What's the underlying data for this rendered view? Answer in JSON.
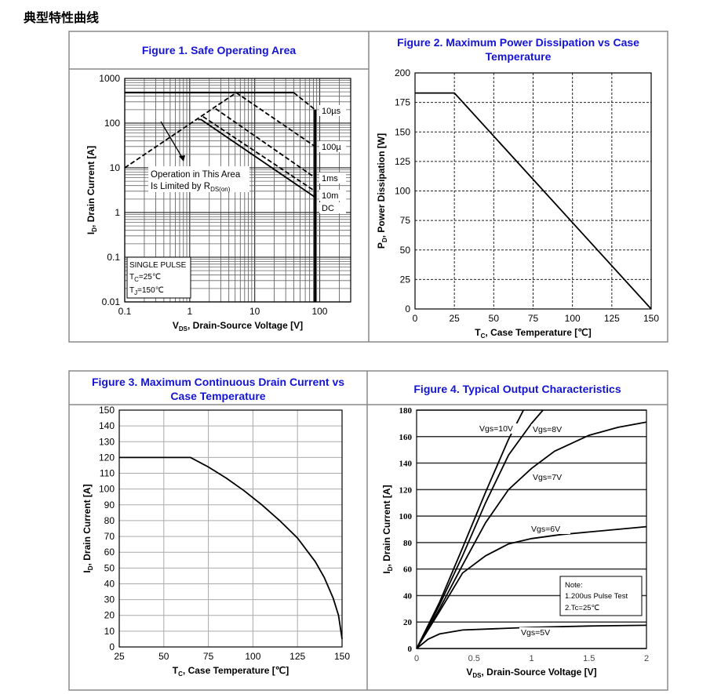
{
  "page_title": "典型特性曲线",
  "figures": [
    {
      "title": "Figure 1. Safe Operating Area"
    },
    {
      "title_lines": [
        "Figure 2. Maximum Power Dissipation vs Case",
        "Temperature"
      ]
    },
    {
      "title_lines": [
        "Figure 3. Maximum Continuous Drain Current vs",
        "Case Temperature"
      ]
    },
    {
      "title": "Figure 4. Typical Output Characteristics"
    }
  ],
  "chart_data": [
    {
      "type": "line",
      "title": "Figure 1. Safe Operating Area",
      "xscale": "log",
      "yscale": "log",
      "xlim": [
        0.1,
        300
      ],
      "ylim": [
        0.01,
        1000
      ],
      "xticks": [
        0.1,
        1,
        10,
        100
      ],
      "xtick_labels": [
        "0.1",
        "1",
        "10",
        "100"
      ],
      "yticks": [
        0.01,
        0.1,
        1,
        10,
        100,
        1000
      ],
      "ytick_labels": [
        "0.01",
        "0.1",
        "1",
        "10",
        "100",
        "1000"
      ],
      "xlabel": {
        "main": "V",
        "sub": "DS",
        "rest": ", Drain-Source Voltage [V]"
      },
      "ylabel": {
        "main": "I",
        "sub": "D",
        "rest": ", Drain Current [A]"
      },
      "grid": true,
      "series": [
        {
          "name": "10µs",
          "style": "solid",
          "points": [
            [
              0.1,
              480
            ],
            [
              40,
              480
            ]
          ]
        },
        {
          "name": "10µs",
          "style": "dashed",
          "points": [
            [
              40,
              480
            ],
            [
              85,
              200
            ]
          ]
        },
        {
          "name": "RDS(on) limit",
          "style": "dashed",
          "points": [
            [
              0.1,
              10
            ],
            [
              5.2,
              480
            ]
          ]
        },
        {
          "name": "100µ",
          "style": "dashed",
          "points": [
            [
              5.2,
              480
            ],
            [
              85,
              30
            ]
          ]
        },
        {
          "name": "1ms",
          "style": "dashed",
          "points": [
            [
              2.5,
              210
            ],
            [
              85,
              6
            ]
          ]
        },
        {
          "name": "10m",
          "style": "dashed",
          "points": [
            [
              1.6,
              140
            ],
            [
              85,
              3
            ]
          ]
        },
        {
          "name": "DC",
          "style": "solid",
          "points": [
            [
              1.35,
              120
            ],
            [
              1.5,
              120
            ],
            [
              85,
              2.2
            ]
          ]
        },
        {
          "name": "VDS limit",
          "style": "thick",
          "points": [
            [
              85,
              200
            ],
            [
              85,
              0.01
            ]
          ]
        }
      ],
      "curve_labels": [
        "10µs",
        "100µ",
        "1ms",
        "10m",
        "DC"
      ],
      "annotation": {
        "line1": "Operation in This Area",
        "line2_main": "Is Limited by R",
        "line2_sub": "DS(on)"
      },
      "conditions": {
        "line1": "SINGLE PULSE",
        "line2_main": "T",
        "line2_sub": "C",
        "line2_rest": "=25℃",
        "line3_main": "T",
        "line3_sub": "J",
        "line3_rest": "=150℃"
      }
    },
    {
      "type": "line",
      "title": "Figure 2. Maximum Power Dissipation vs Case Temperature",
      "xlim": [
        0,
        150
      ],
      "ylim": [
        0,
        200
      ],
      "xticks": [
        0,
        25,
        50,
        75,
        100,
        125,
        150
      ],
      "xtick_labels": [
        "0",
        "25",
        "50",
        "75",
        "100",
        "125",
        "150"
      ],
      "yticks": [
        0,
        25,
        50,
        75,
        100,
        125,
        150,
        175,
        200
      ],
      "ytick_labels": [
        "0",
        "25",
        "50",
        "75",
        "100",
        "125",
        "150",
        "175",
        "200"
      ],
      "xlabel": {
        "main": "T",
        "sub": "C",
        "rest": ", Case Temperature [℃]"
      },
      "ylabel": {
        "main": "P",
        "sub": "D",
        "rest": ", Power Dissipation [W]"
      },
      "grid": true,
      "series": [
        {
          "style": "solid",
          "points": [
            [
              0,
              183
            ],
            [
              25,
              183
            ],
            [
              150,
              0
            ]
          ]
        }
      ]
    },
    {
      "type": "line",
      "title": "Figure 3. Maximum Continuous Drain Current vs Case Temperature",
      "xlim": [
        25,
        150
      ],
      "ylim": [
        0,
        150
      ],
      "xticks": [
        25,
        50,
        75,
        100,
        125,
        150
      ],
      "xtick_labels": [
        "25",
        "50",
        "75",
        "100",
        "125",
        "150"
      ],
      "yticks": [
        0,
        10,
        20,
        30,
        40,
        50,
        60,
        70,
        80,
        90,
        100,
        110,
        120,
        130,
        140,
        150
      ],
      "ytick_labels": [
        "0",
        "10",
        "20",
        "30",
        "40",
        "50",
        "60",
        "70",
        "80",
        "90",
        "100",
        "110",
        "120",
        "130",
        "140",
        "150"
      ],
      "xlabel": {
        "main": "T",
        "sub": "C",
        "rest": ", Case Temperature [℃]"
      },
      "ylabel": {
        "main": "I",
        "sub": "D",
        "rest": ", Drain Current [A]"
      },
      "grid": true,
      "series": [
        {
          "style": "solid",
          "points": [
            [
              25,
              120
            ],
            [
              65,
              120
            ],
            [
              75,
              114
            ],
            [
              85,
              107
            ],
            [
              95,
              99
            ],
            [
              105,
              90
            ],
            [
              115,
              80
            ],
            [
              125,
              69
            ],
            [
              135,
              54
            ],
            [
              140,
              44
            ],
            [
              145,
              31
            ],
            [
              148,
              20
            ],
            [
              150,
              5
            ]
          ]
        }
      ]
    },
    {
      "type": "line",
      "title": "Figure 4. Typical Output Characteristics",
      "xlim": [
        0,
        2
      ],
      "ylim": [
        0,
        180
      ],
      "xticks": [
        0,
        0.5,
        1,
        1.5,
        2
      ],
      "xtick_labels": [
        "0",
        "0.5",
        "1",
        "1.5",
        "2"
      ],
      "yticks": [
        0,
        20,
        40,
        60,
        80,
        100,
        120,
        140,
        160,
        180
      ],
      "ytick_labels": [
        "0",
        "20",
        "40",
        "60",
        "80",
        "100",
        "120",
        "140",
        "160",
        "180"
      ],
      "xlabel": {
        "main": "V",
        "sub": "DS",
        "rest": ", Drain-Source Voltage [V]"
      },
      "ylabel": {
        "main": "I",
        "sub": "D",
        "rest": ", Drain Current [A]"
      },
      "grid": "horizontal",
      "series": [
        {
          "name": "Vgs=10V",
          "points": [
            [
              0,
              0
            ],
            [
              0.2,
              35
            ],
            [
              0.4,
              76
            ],
            [
              0.6,
              118
            ],
            [
              0.8,
              158
            ],
            [
              0.93,
              180
            ]
          ]
        },
        {
          "name": "Vgs=8V",
          "points": [
            [
              0,
              0
            ],
            [
              0.2,
              33
            ],
            [
              0.4,
              70
            ],
            [
              0.6,
              110
            ],
            [
              0.8,
              146
            ],
            [
              1.0,
              170
            ],
            [
              1.1,
              180
            ]
          ]
        },
        {
          "name": "Vgs=7V",
          "points": [
            [
              0,
              0
            ],
            [
              0.2,
              30
            ],
            [
              0.4,
              63
            ],
            [
              0.6,
              95
            ],
            [
              0.8,
              120
            ],
            [
              1.0,
              136
            ],
            [
              1.2,
              149
            ],
            [
              1.5,
              161
            ],
            [
              1.75,
              167
            ],
            [
              2,
              171
            ]
          ]
        },
        {
          "name": "Vgs=6V",
          "points": [
            [
              0,
              0
            ],
            [
              0.2,
              28
            ],
            [
              0.4,
              57
            ],
            [
              0.6,
              70
            ],
            [
              0.8,
              79
            ],
            [
              1.0,
              83
            ],
            [
              1.25,
              86
            ],
            [
              1.5,
              88
            ],
            [
              1.75,
              90
            ],
            [
              2,
              92
            ]
          ]
        },
        {
          "name": "Vgs=5V",
          "points": [
            [
              0,
              0
            ],
            [
              0.1,
              7
            ],
            [
              0.2,
              11
            ],
            [
              0.4,
              14
            ],
            [
              0.7,
              15
            ],
            [
              1,
              16
            ],
            [
              1.5,
              17
            ],
            [
              2,
              17.5
            ]
          ]
        }
      ],
      "note": {
        "line1": "Note:",
        "line2": "1.200us Pulse Test",
        "line3": "2.Tc=25℃"
      }
    }
  ]
}
